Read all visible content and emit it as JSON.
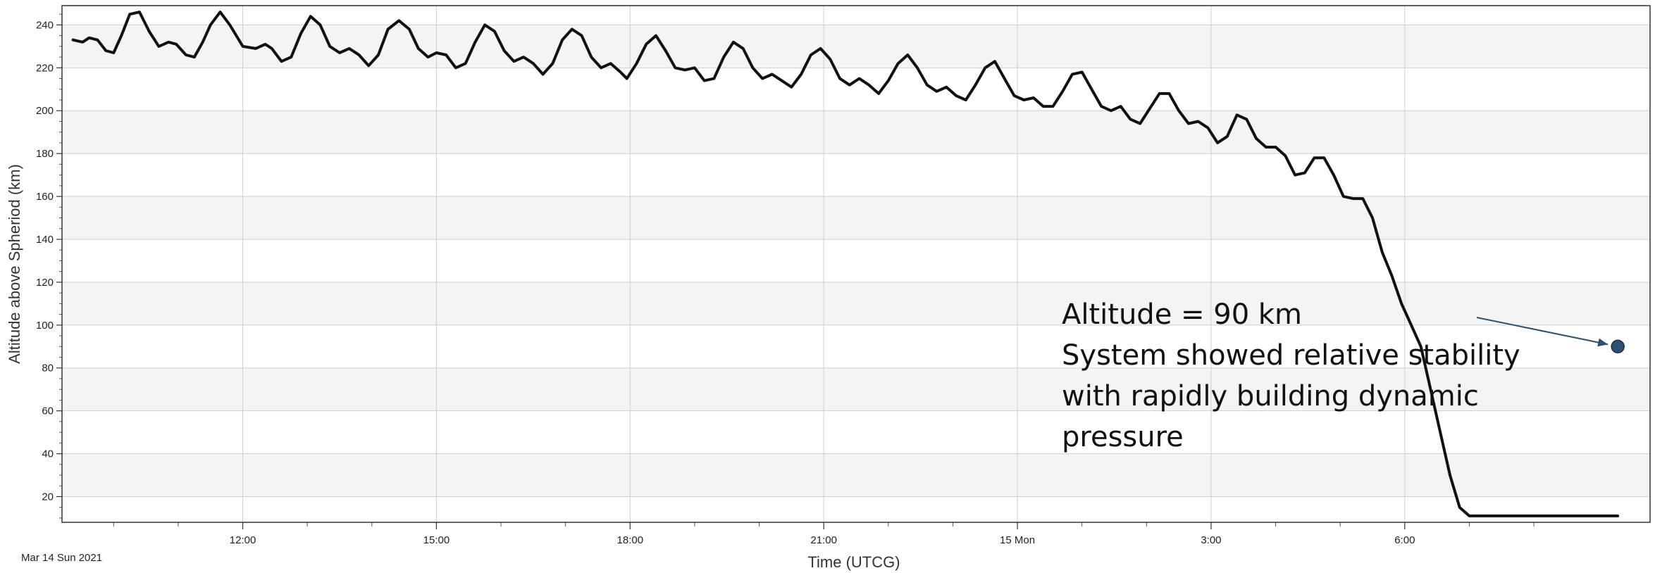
{
  "chart_data": {
    "type": "line",
    "xlabel": "Time (UTCG)",
    "ylabel": "Altitude above Spheriod (km)",
    "start_label": "Mar 14 Sun 2021",
    "x_unit": "hours",
    "xlim": [
      9.2,
      33.8
    ],
    "ylim": [
      8,
      249
    ],
    "x_ticks": [
      {
        "x": 12,
        "label": "12:00"
      },
      {
        "x": 15,
        "label": "15:00"
      },
      {
        "x": 18,
        "label": "18:00"
      },
      {
        "x": 21,
        "label": "21:00"
      },
      {
        "x": 24,
        "label": "15 Mon"
      },
      {
        "x": 27,
        "label": "3:00"
      },
      {
        "x": 30,
        "label": "6:00"
      }
    ],
    "y_ticks": [
      20,
      40,
      60,
      80,
      100,
      120,
      140,
      160,
      180,
      200,
      220,
      240
    ],
    "grid": true,
    "series": [
      {
        "x": [
          9.37,
          9.52,
          9.62,
          9.75,
          9.88,
          10.0,
          10.12,
          10.25,
          10.4,
          10.55,
          10.7,
          10.85,
          10.97,
          11.12,
          11.25,
          11.38,
          11.5,
          11.65,
          11.8,
          12.0,
          12.2,
          12.35,
          12.45,
          12.6,
          12.75,
          12.9,
          13.05,
          13.2,
          13.35,
          13.5,
          13.65,
          13.8,
          13.95,
          14.1,
          14.25,
          14.42,
          14.58,
          14.72,
          14.87,
          15.0,
          15.15,
          15.3,
          15.45,
          15.6,
          15.75,
          15.9,
          16.05,
          16.2,
          16.35,
          16.5,
          16.65,
          16.8,
          16.95,
          17.1,
          17.25,
          17.4,
          17.55,
          17.7,
          17.85,
          17.95,
          18.1,
          18.25,
          18.4,
          18.55,
          18.7,
          18.85,
          19.0,
          19.15,
          19.3,
          19.45,
          19.6,
          19.75,
          19.9,
          20.05,
          20.2,
          20.35,
          20.5,
          20.65,
          20.8,
          20.95,
          21.1,
          21.25,
          21.4,
          21.55,
          21.7,
          21.85,
          22.0,
          22.15,
          22.3,
          22.45,
          22.6,
          22.75,
          22.9,
          23.05,
          23.2,
          23.35,
          23.5,
          23.65,
          23.8,
          23.95,
          24.1,
          24.25,
          24.4,
          24.55,
          24.7,
          24.85,
          25.0,
          25.15,
          25.3,
          25.45,
          25.6,
          25.75,
          25.9,
          26.05,
          26.2,
          26.35,
          26.5,
          26.65,
          26.8,
          26.95,
          27.1,
          27.25,
          27.4,
          27.55,
          27.7,
          27.85,
          28.0,
          28.15,
          28.3,
          28.45,
          28.6,
          28.75,
          28.9,
          29.05,
          29.2,
          29.35,
          29.5,
          29.65,
          29.8,
          29.95,
          30.1,
          30.25,
          30.4,
          30.55,
          30.7,
          30.85,
          31.0,
          31.15,
          31.3,
          31.45,
          31.6,
          31.75,
          31.9,
          32.05,
          32.15,
          32.3,
          32.45,
          32.6,
          32.75,
          32.85,
          32.95,
          33.05,
          33.13,
          33.18,
          33.21,
          33.23,
          33.25,
          33.27,
          33.28,
          33.3
        ],
        "values": [
          233,
          232,
          234,
          233,
          228,
          227,
          235,
          245,
          246,
          237,
          230,
          232,
          231,
          226,
          225,
          232,
          240,
          246,
          240,
          230,
          229,
          231,
          229,
          223,
          225,
          236,
          244,
          240,
          230,
          227,
          229,
          226,
          221,
          226,
          238,
          242,
          238,
          229,
          225,
          227,
          226,
          220,
          222,
          232,
          240,
          237,
          228,
          223,
          225,
          222,
          217,
          222,
          233,
          238,
          235,
          225,
          220,
          222,
          218,
          215,
          222,
          231,
          235,
          228,
          220,
          219,
          220,
          214,
          215,
          225,
          232,
          229,
          220,
          215,
          217,
          214,
          211,
          217,
          226,
          229,
          224,
          215,
          212,
          215,
          212,
          208,
          214,
          222,
          226,
          220,
          212,
          209,
          211,
          207,
          205,
          212,
          220,
          223,
          215,
          207,
          205,
          206,
          202,
          202,
          209,
          217,
          218,
          210,
          202,
          200,
          202,
          196,
          194,
          201,
          208,
          208,
          200,
          194,
          195,
          192,
          185,
          188,
          198,
          196,
          187,
          183,
          183,
          179,
          170,
          171,
          178,
          178,
          170,
          160,
          159,
          159,
          150,
          134,
          123,
          110,
          100,
          90,
          70,
          50,
          30,
          15,
          11,
          11,
          11,
          11,
          11,
          11,
          11,
          11,
          11,
          11,
          11,
          11,
          11,
          11,
          11,
          11,
          11,
          11,
          11,
          11,
          11,
          11,
          11,
          11
        ]
      }
    ],
    "marker": {
      "x": 33.3,
      "y": 90
    },
    "annotation": {
      "lines": [
        "Altitude = 90 km",
        "System showed relative stability",
        "with rapidly building dynamic",
        "pressure"
      ]
    }
  }
}
